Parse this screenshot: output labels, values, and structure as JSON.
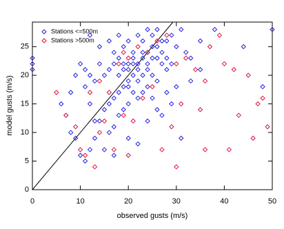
{
  "chart_data": {
    "type": "scatter",
    "xlabel": "observed gusts (m/s)",
    "ylabel": "model gusts (m/s)",
    "xlim": [
      0,
      50
    ],
    "ylim": [
      0,
      29.3
    ],
    "xticks": [
      0,
      10,
      20,
      30,
      40,
      50
    ],
    "yticks": [
      0,
      5,
      10,
      15,
      20,
      25
    ],
    "legend": "upper left",
    "series": [
      {
        "name": "Stations <=500m",
        "color": "#2020e0",
        "x": [
          0,
          0,
          0,
          10,
          11,
          12,
          13,
          14,
          15,
          16,
          17,
          18,
          19,
          20,
          21,
          22,
          23,
          24,
          25,
          26,
          27,
          28,
          29,
          30,
          31,
          32,
          33,
          35,
          38,
          44,
          48,
          50,
          6,
          7,
          8,
          9,
          10,
          11,
          12,
          13,
          14,
          15,
          16,
          17,
          18,
          19,
          20,
          21,
          22,
          23,
          24,
          25,
          26,
          27,
          28,
          12,
          14,
          16,
          17,
          18,
          19,
          20,
          21,
          22,
          23,
          24,
          25,
          26,
          27,
          18,
          19,
          20,
          21,
          22,
          23,
          24,
          25,
          20,
          21,
          22,
          23,
          24,
          16,
          17,
          18,
          19,
          20,
          15,
          17,
          20,
          22,
          24,
          26,
          30,
          31,
          29,
          13,
          12,
          11,
          9,
          8,
          35,
          33,
          27,
          28,
          25,
          26,
          28,
          29
        ],
        "values": [
          21,
          22,
          23,
          22,
          21,
          20,
          19,
          22,
          20,
          21,
          22,
          20,
          21,
          22,
          23,
          21,
          24,
          22,
          25,
          23,
          24,
          26,
          27,
          25,
          28,
          24,
          23,
          26,
          28,
          25,
          18,
          28,
          15,
          13,
          10,
          9,
          6,
          5,
          7,
          9,
          12,
          14,
          15,
          16,
          17,
          18,
          19,
          20,
          19,
          20,
          21,
          20,
          19,
          22,
          21,
          27,
          25,
          26,
          24,
          27,
          25,
          26,
          24,
          27,
          26,
          28,
          27,
          28,
          26,
          23,
          22,
          21,
          22,
          22,
          23,
          24,
          23,
          18,
          17,
          16,
          17,
          18,
          10,
          11,
          13,
          14,
          15,
          7,
          6,
          9,
          8,
          12,
          14,
          18,
          9,
          15,
          12,
          15,
          18,
          20,
          17,
          21,
          19,
          13,
          17,
          16,
          25,
          23,
          22
        ]
      },
      {
        "name": "Stations >500m",
        "color": "#e0103a",
        "x": [
          5,
          7,
          9,
          10,
          11,
          13,
          14,
          15,
          12,
          14,
          16,
          18,
          19,
          20,
          22,
          24,
          26,
          28,
          30,
          32,
          34,
          36,
          37,
          39,
          40,
          42,
          45,
          47,
          48,
          49,
          43,
          41,
          36,
          31,
          29,
          27,
          25,
          23,
          21,
          19,
          17,
          30,
          20,
          46,
          35
        ],
        "values": [
          17,
          13,
          11,
          7,
          6,
          4,
          10,
          12,
          17,
          19,
          17,
          22,
          24,
          23,
          25,
          24,
          26,
          27,
          22,
          23,
          21,
          19,
          25,
          27,
          22,
          21,
          20,
          15,
          16,
          11,
          13,
          7,
          7,
          15,
          11,
          7,
          18,
          16,
          12,
          13,
          7,
          4,
          6,
          9,
          14
        ]
      }
    ]
  }
}
